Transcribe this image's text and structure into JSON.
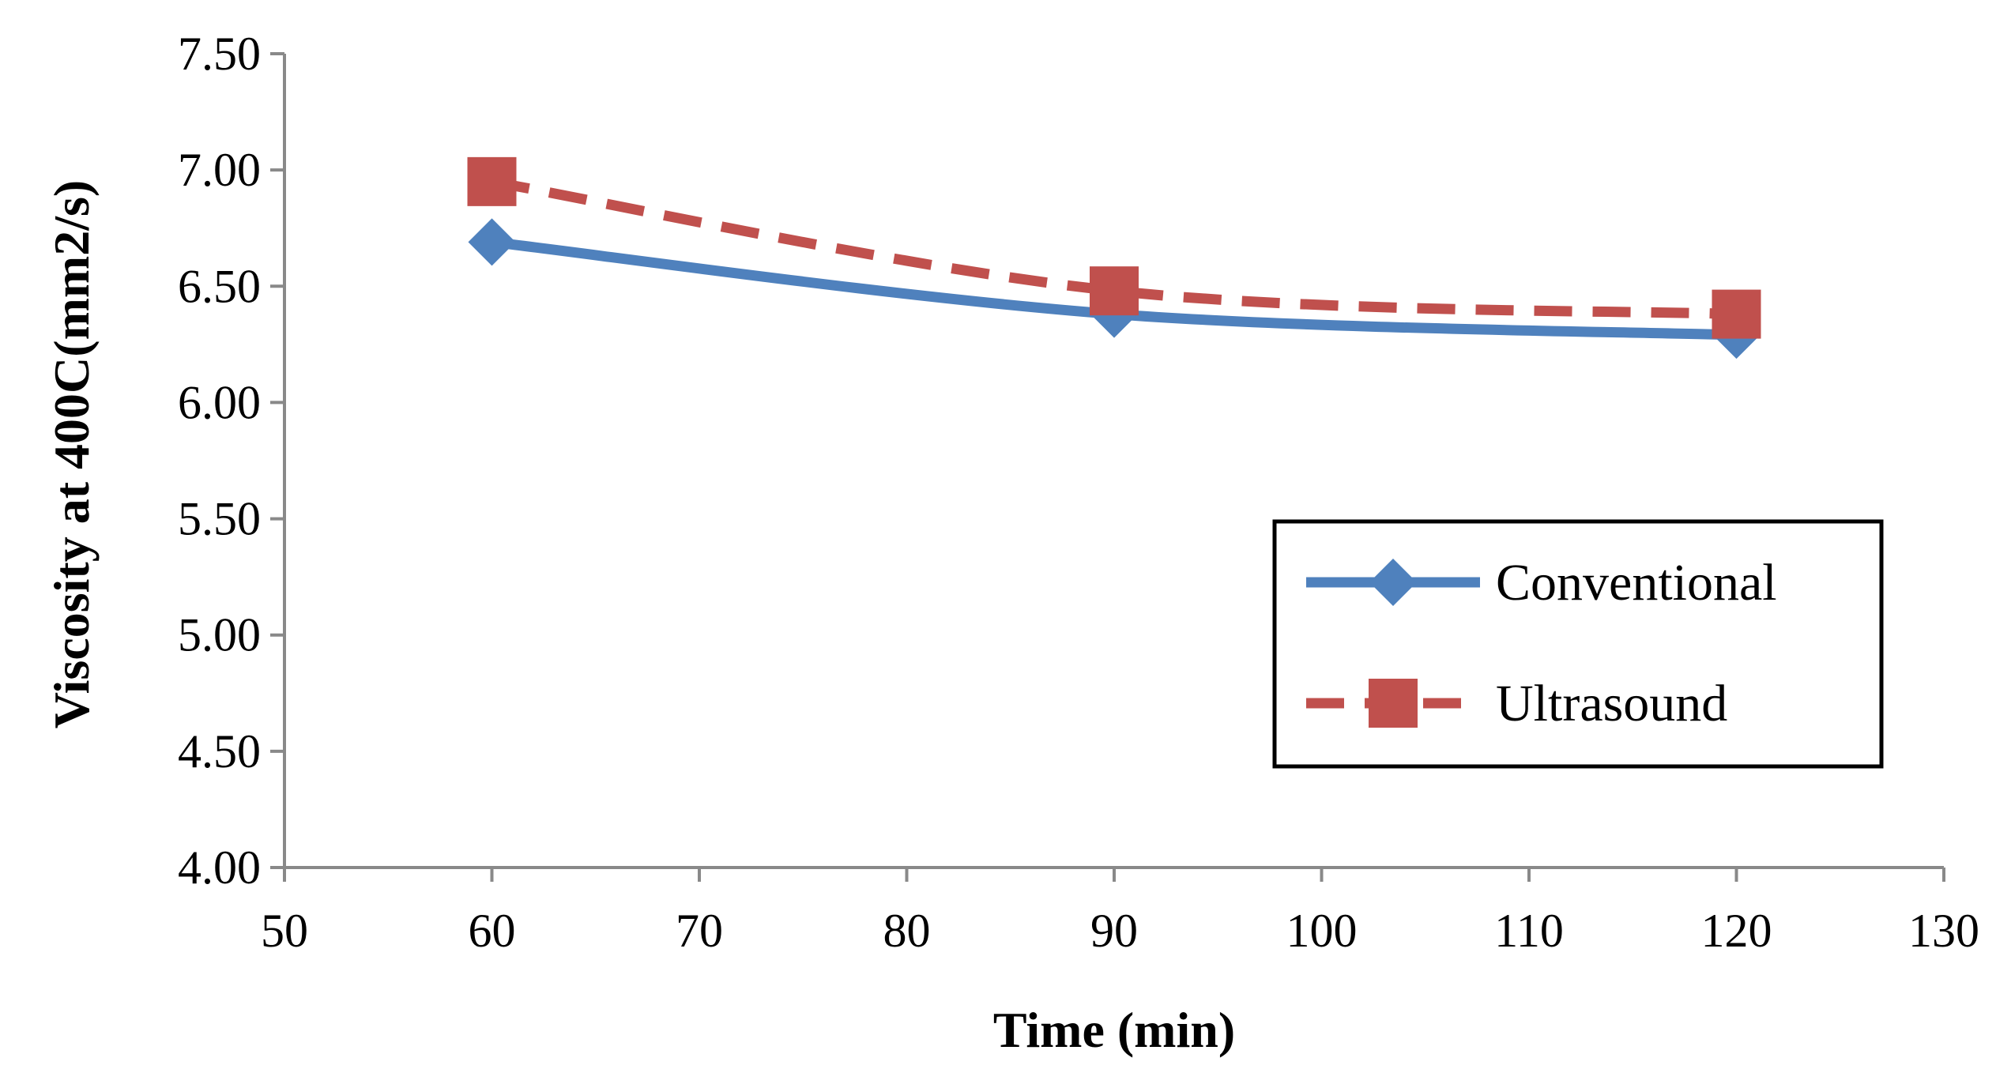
{
  "chart_data": {
    "type": "line",
    "title": "",
    "xlabel": "Time (min)",
    "ylabel": "Viscosity at 400C(mm2/s)",
    "xlim": [
      50,
      130
    ],
    "ylim": [
      4.0,
      7.5
    ],
    "xticks": [
      "50",
      "60",
      "70",
      "80",
      "90",
      "100",
      "110",
      "120",
      "130"
    ],
    "yticks": [
      "4.00",
      "4.50",
      "5.00",
      "5.50",
      "6.00",
      "6.50",
      "7.00",
      "7.50"
    ],
    "grid": false,
    "legend_position": "right",
    "series": [
      {
        "name": "Conventional",
        "x": [
          60,
          90,
          120
        ],
        "values": [
          6.69,
          6.38,
          6.29
        ],
        "color": "#4F81BD",
        "line_style": "solid",
        "marker": "diamond"
      },
      {
        "name": "Ultrasound",
        "x": [
          60,
          90,
          120
        ],
        "values": [
          6.95,
          6.48,
          6.38
        ],
        "color": "#C0504D",
        "line_style": "dashed",
        "marker": "square"
      }
    ]
  }
}
